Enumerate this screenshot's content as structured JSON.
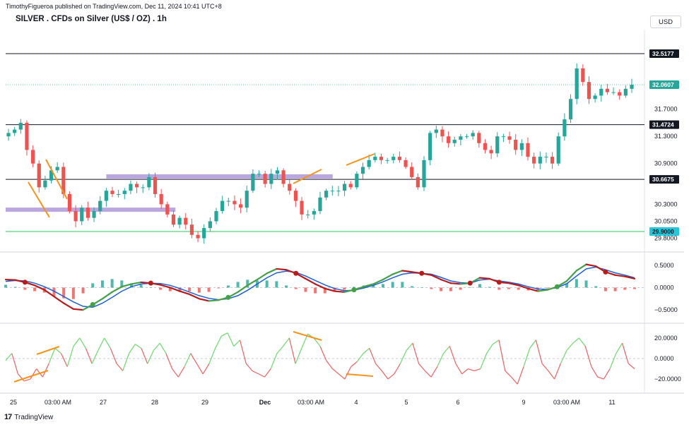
{
  "header": {
    "publisher": "TimothyFigueroa published on TradingView.com, Dec 11, 2024 10:41 UTC+8"
  },
  "symbol_title": "SILVER . CFDs on Silver (US$ / OZ) . 1h",
  "currency": "USD",
  "footer": {
    "brand": "TradingView"
  },
  "chart_data": [
    {
      "type": "line",
      "title": "SILVER . CFDs on Silver (US$ / OZ) . 1h",
      "subtype": "candlestick",
      "x_labels": [
        "25",
        "03:00 AM",
        "27",
        "28",
        "29",
        "Dec",
        "03:00 AM",
        "4",
        "5",
        "6",
        "9",
        "03:00 AM",
        "11"
      ],
      "y_ticks": [
        31.7,
        31.3,
        30.9,
        30.3,
        30.05,
        29.8
      ],
      "ylim": [
        29.65,
        32.85
      ],
      "price_tags": [
        {
          "value": "32.5177",
          "style": "dark"
        },
        {
          "value": "32.0607",
          "style": "green",
          "label": "last"
        },
        {
          "value": "31.4724",
          "style": "dark"
        },
        {
          "value": "30.6675",
          "style": "dark"
        },
        {
          "value": "29.9000",
          "style": "cyan"
        }
      ],
      "horizontal_lines": [
        32.5177,
        31.4724,
        30.6675,
        29.9
      ],
      "zones": [
        {
          "from_x": 0,
          "to_x": 0.27,
          "price": 30.22,
          "color": "#b39ddb"
        },
        {
          "from_x": 0.16,
          "to_x": 0.52,
          "price": 30.71,
          "color": "#b39ddb"
        }
      ],
      "close_path": [
        31.35,
        31.4,
        31.5,
        31.1,
        30.9,
        30.55,
        30.65,
        30.8,
        30.85,
        30.45,
        30.2,
        30.05,
        30.25,
        30.1,
        30.2,
        30.35,
        30.5,
        30.45,
        30.45,
        30.5,
        30.6,
        30.55,
        30.55,
        30.7,
        30.45,
        30.3,
        30.15,
        30.0,
        30.1,
        30.0,
        29.85,
        29.8,
        29.95,
        30.05,
        30.2,
        30.35,
        30.35,
        30.3,
        30.25,
        30.5,
        30.75,
        30.75,
        30.6,
        30.75,
        30.8,
        30.6,
        30.5,
        30.35,
        30.15,
        30.15,
        30.2,
        30.4,
        30.5,
        30.5,
        30.5,
        30.6,
        30.55,
        30.75,
        30.85,
        30.95,
        31.0,
        30.95,
        30.95,
        31.0,
        30.95,
        30.85,
        30.7,
        30.55,
        30.95,
        31.35,
        31.4,
        31.3,
        31.2,
        31.25,
        31.3,
        31.3,
        31.35,
        31.2,
        31.1,
        31.05,
        31.3,
        31.3,
        31.25,
        31.1,
        31.2,
        31.0,
        30.9,
        31.0,
        31.0,
        30.9,
        31.3,
        31.55,
        31.85,
        32.3,
        32.1,
        31.85,
        31.9,
        32.0,
        31.95,
        31.95,
        31.9,
        32.0,
        32.06
      ]
    },
    {
      "type": "line",
      "title": "",
      "y_ticks": [
        0.5,
        0.0,
        -0.5
      ],
      "ylim": [
        -0.72,
        0.72
      ],
      "series": [
        {
          "color": "#43a047",
          "style": "fast-line"
        },
        {
          "color": "#1e5fd9",
          "style": "slow-line"
        },
        {
          "color": "#26a69a",
          "style": "histogram"
        }
      ],
      "fast": [
        0.18,
        0.17,
        0.12,
        0.05,
        -0.05,
        -0.2,
        -0.35,
        -0.48,
        -0.5,
        -0.38,
        -0.25,
        -0.1,
        0.02,
        0.08,
        0.12,
        0.1,
        0.06,
        0.0,
        -0.08,
        -0.15,
        -0.25,
        -0.3,
        -0.28,
        -0.22,
        -0.1,
        0.05,
        0.18,
        0.32,
        0.42,
        0.4,
        0.32,
        0.2,
        0.08,
        -0.02,
        -0.08,
        -0.1,
        -0.05,
        0.02,
        0.08,
        0.18,
        0.3,
        0.38,
        0.35,
        0.32,
        0.28,
        0.18,
        0.1,
        0.08,
        0.1,
        0.22,
        0.2,
        0.12,
        0.1,
        0.05,
        -0.02,
        -0.08,
        -0.05,
        0.02,
        0.15,
        0.38,
        0.52,
        0.48,
        0.35,
        0.28,
        0.25,
        0.2
      ],
      "slow": [
        0.14,
        0.16,
        0.15,
        0.1,
        0.02,
        -0.08,
        -0.2,
        -0.32,
        -0.42,
        -0.44,
        -0.35,
        -0.22,
        -0.08,
        0.02,
        0.08,
        0.1,
        0.09,
        0.05,
        -0.02,
        -0.1,
        -0.18,
        -0.24,
        -0.27,
        -0.25,
        -0.18,
        -0.06,
        0.08,
        0.22,
        0.33,
        0.37,
        0.34,
        0.26,
        0.16,
        0.06,
        -0.02,
        -0.07,
        -0.06,
        -0.01,
        0.05,
        0.13,
        0.22,
        0.3,
        0.33,
        0.32,
        0.3,
        0.23,
        0.15,
        0.11,
        0.1,
        0.17,
        0.19,
        0.15,
        0.12,
        0.08,
        0.02,
        -0.03,
        -0.04,
        0.0,
        0.09,
        0.26,
        0.42,
        0.46,
        0.4,
        0.33,
        0.28,
        0.22
      ]
    },
    {
      "type": "line",
      "title": "",
      "y_ticks": [
        20.0,
        0.0,
        -20.0
      ],
      "ylim": [
        -31,
        31
      ],
      "values": [
        -2,
        5,
        -15,
        -22,
        -20,
        -10,
        -18,
        -5,
        10,
        5,
        -8,
        12,
        20,
        10,
        -5,
        8,
        20,
        10,
        -5,
        -12,
        5,
        14,
        10,
        -5,
        8,
        15,
        5,
        -10,
        -18,
        -8,
        5,
        -5,
        -15,
        -5,
        10,
        22,
        25,
        12,
        18,
        -5,
        -12,
        -15,
        -18,
        -10,
        5,
        12,
        20,
        -5,
        10,
        24,
        20,
        12,
        -2,
        -10,
        -15,
        -20,
        -8,
        -3,
        5,
        10,
        -5,
        -12,
        -20,
        -15,
        -5,
        8,
        15,
        -5,
        -12,
        -18,
        -8,
        5,
        12,
        -5,
        -15,
        -10,
        -12,
        -10,
        5,
        14,
        18,
        -12,
        -18,
        -25,
        -8,
        10,
        18,
        -5,
        -12,
        -20,
        -5,
        8,
        15,
        20,
        12,
        -8,
        -18,
        -20,
        -10,
        5,
        15,
        -5,
        -10
      ]
    }
  ]
}
